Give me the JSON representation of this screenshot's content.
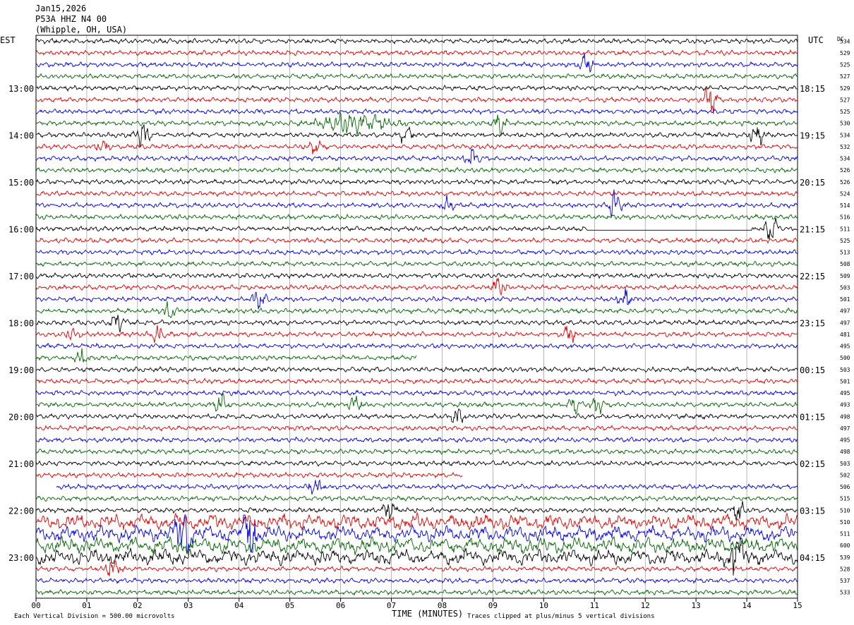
{
  "header": {
    "date": "Jan15,2026",
    "station": "P53A HHZ N4 00",
    "location": "(Whipple, OH, USA)"
  },
  "left_timezone": "EST",
  "right_timezone": "UTC",
  "dc_label": "DC",
  "xlabel": "TIME (MINUTES)",
  "footer_left": "Each Vertical Division =  500.00 microvolts",
  "footer_right": "Traces clipped at plus/minus 5 vertical divisions",
  "colors": {
    "cycle": [
      "#000000",
      "#e00000",
      "#0000e0",
      "#006400"
    ],
    "grid": "#888888"
  },
  "chart_data": {
    "type": "helicorder",
    "title": "P53A HHZ N4 00",
    "xlabel": "TIME (MINUTES)",
    "xlim": [
      0,
      15
    ],
    "x_ticks": [
      "00",
      "01",
      "02",
      "03",
      "04",
      "05",
      "06",
      "07",
      "08",
      "09",
      "10",
      "11",
      "12",
      "13",
      "14",
      "15"
    ],
    "rows": 48,
    "row_minutes": 15,
    "left_hour_labels": [
      {
        "row": 4,
        "label": "13:00"
      },
      {
        "row": 8,
        "label": "14:00"
      },
      {
        "row": 12,
        "label": "15:00"
      },
      {
        "row": 16,
        "label": "16:00"
      },
      {
        "row": 20,
        "label": "17:00"
      },
      {
        "row": 24,
        "label": "18:00"
      },
      {
        "row": 28,
        "label": "19:00"
      },
      {
        "row": 32,
        "label": "20:00"
      },
      {
        "row": 36,
        "label": "21:00"
      },
      {
        "row": 40,
        "label": "22:00"
      },
      {
        "row": 44,
        "label": "23:00"
      }
    ],
    "right_hour_labels": [
      {
        "row": 4,
        "label": "18:15"
      },
      {
        "row": 8,
        "label": "19:15"
      },
      {
        "row": 12,
        "label": "20:15"
      },
      {
        "row": 16,
        "label": "21:15"
      },
      {
        "row": 20,
        "label": "22:15"
      },
      {
        "row": 24,
        "label": "23:15"
      },
      {
        "row": 28,
        "label": "00:15"
      },
      {
        "row": 32,
        "label": "01:15"
      },
      {
        "row": 36,
        "label": "02:15"
      },
      {
        "row": 40,
        "label": "03:15"
      },
      {
        "row": 44,
        "label": "04:15"
      }
    ],
    "dc_offsets": [
      534,
      529,
      525,
      527,
      529,
      527,
      525,
      530,
      534,
      532,
      534,
      526,
      526,
      524,
      514,
      516,
      511,
      525,
      513,
      508,
      509,
      503,
      501,
      497,
      497,
      481,
      495,
      500,
      503,
      501,
      495,
      493,
      498,
      497,
      495,
      498,
      503,
      502,
      506,
      515,
      510,
      510,
      511,
      600,
      539,
      528,
      537,
      533
    ],
    "events": [
      {
        "row": 2,
        "minute": 10.85,
        "amp": 3.0
      },
      {
        "row": 5,
        "minute": 13.3,
        "amp": 4.5
      },
      {
        "row": 7,
        "minute": 6.3,
        "amp": 2.5,
        "width": 0.6
      },
      {
        "row": 7,
        "minute": 9.15,
        "amp": 2.5
      },
      {
        "row": 8,
        "minute": 2.1,
        "amp": 3.0
      },
      {
        "row": 8,
        "minute": 7.3,
        "amp": 2.5
      },
      {
        "row": 8,
        "minute": 14.2,
        "amp": 3.0
      },
      {
        "row": 9,
        "minute": 1.3,
        "amp": 2.0
      },
      {
        "row": 9,
        "minute": 5.5,
        "amp": 1.5
      },
      {
        "row": 10,
        "minute": 8.6,
        "amp": 2.5
      },
      {
        "row": 14,
        "minute": 8.1,
        "amp": 2.0
      },
      {
        "row": 14,
        "minute": 11.4,
        "amp": 3.0
      },
      {
        "row": 16,
        "minute": 14.5,
        "amp": 4.0
      },
      {
        "row": 21,
        "minute": 9.1,
        "amp": 3.0
      },
      {
        "row": 22,
        "minute": 4.4,
        "amp": 3.0
      },
      {
        "row": 22,
        "minute": 11.6,
        "amp": 2.5
      },
      {
        "row": 23,
        "minute": 2.6,
        "amp": 2.5
      },
      {
        "row": 24,
        "minute": 1.6,
        "amp": 2.5
      },
      {
        "row": 25,
        "minute": 0.7,
        "amp": 1.8
      },
      {
        "row": 25,
        "minute": 2.4,
        "amp": 2.0
      },
      {
        "row": 25,
        "minute": 10.5,
        "amp": 2.0
      },
      {
        "row": 27,
        "minute": 0.9,
        "amp": 1.8
      },
      {
        "row": 31,
        "minute": 3.65,
        "amp": 2.5
      },
      {
        "row": 31,
        "minute": 6.3,
        "amp": 2.0
      },
      {
        "row": 31,
        "minute": 10.6,
        "amp": 1.8
      },
      {
        "row": 31,
        "minute": 11.05,
        "amp": 2.0
      },
      {
        "row": 32,
        "minute": 8.3,
        "amp": 2.0
      },
      {
        "row": 38,
        "minute": 5.5,
        "amp": 2.0
      },
      {
        "row": 40,
        "minute": 6.95,
        "amp": 2.5
      },
      {
        "row": 40,
        "minute": 13.85,
        "amp": 2.5
      },
      {
        "row": 42,
        "minute": 2.9,
        "amp": 3.0
      },
      {
        "row": 42,
        "minute": 4.2,
        "amp": 3.0
      },
      {
        "row": 44,
        "minute": 13.8,
        "amp": 2.5
      },
      {
        "row": 45,
        "minute": 1.5,
        "amp": 2.5
      }
    ],
    "gaps": [
      {
        "row": 16,
        "start": 10.85,
        "end": 14.1,
        "flat": true
      },
      {
        "row": 27,
        "start": 7.5,
        "end": 15
      },
      {
        "row": 37,
        "start": 8.4,
        "end": 15
      },
      {
        "row": 38,
        "start": 0,
        "end": 0.4
      }
    ],
    "noisy_rows": [
      41,
      42,
      43,
      44
    ],
    "clip_divisions": 5,
    "vertical_division_microvolts": 500.0
  }
}
